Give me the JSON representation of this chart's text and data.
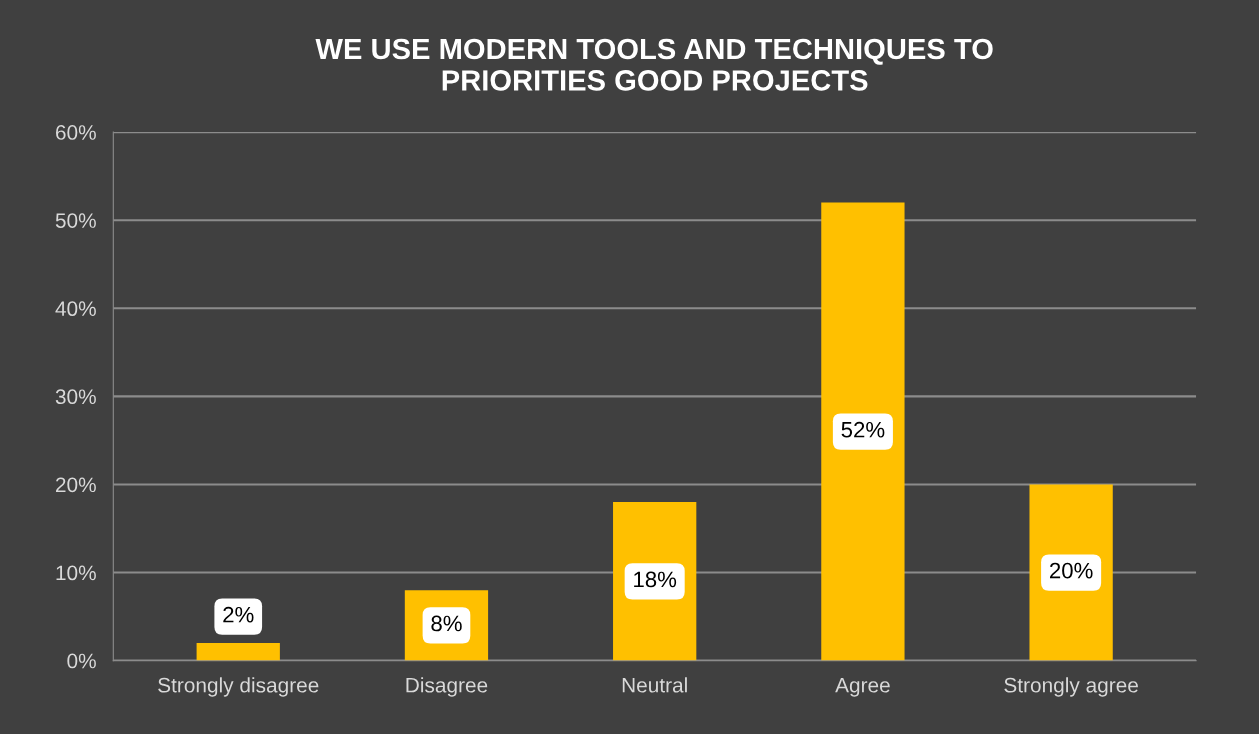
{
  "chart_data": {
    "type": "bar",
    "title": "WE USE MODERN TOOLS AND TECHNIQUES TO\nPRIORITIES GOOD PROJECTS",
    "categories": [
      "Strongly disagree",
      "Disagree",
      "Neutral",
      "Agree",
      "Strongly agree"
    ],
    "values": [
      2,
      8,
      18,
      52,
      20
    ],
    "value_labels": [
      "2%",
      "8%",
      "18%",
      "52%",
      "20%"
    ],
    "color": "#ffc000",
    "ylim": [
      0,
      60
    ],
    "yticks": [
      {
        "value": 0,
        "label": "0%"
      },
      {
        "value": 10,
        "label": "10%"
      },
      {
        "value": 20,
        "label": "20%"
      },
      {
        "value": 30,
        "label": "30%"
      },
      {
        "value": 40,
        "label": "40%"
      },
      {
        "value": 50,
        "label": "50%"
      },
      {
        "value": 60,
        "label": "60%"
      }
    ],
    "grid": "y"
  }
}
